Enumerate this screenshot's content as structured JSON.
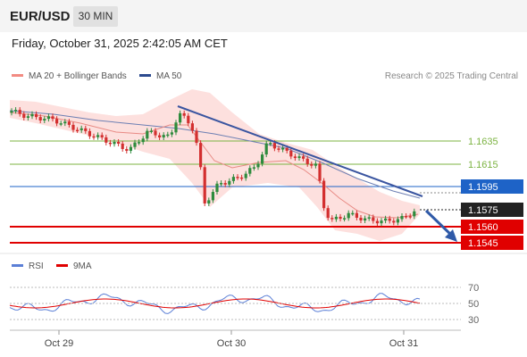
{
  "header": {
    "symbol": "EUR/USD",
    "timeframe": "30 MIN"
  },
  "datetime": "Friday, October 31, 2025 2:42:05 AM CET",
  "legend": {
    "ma20_label": "MA 20 + Bollinger Bands",
    "ma20_color": "#f28b82",
    "ma50_label": "MA 50",
    "ma50_color": "#2c4a8f",
    "rsi_label": "RSI",
    "rsi_color": "#5b7fd6",
    "ma9_label": "9MA",
    "ma9_color": "#e00000"
  },
  "credit": "Research © 2025 Trading Central",
  "price_levels": [
    {
      "label": "1.1635",
      "kind": "resistance",
      "color": "#7cb342"
    },
    {
      "label": "1.1615",
      "kind": "resistance",
      "color": "#7cb342"
    },
    {
      "label": "1.1595",
      "kind": "pivot",
      "color": "#1e63c7"
    },
    {
      "label": "1.1575",
      "kind": "last",
      "color": "#222222"
    },
    {
      "label": "1.1560",
      "kind": "support",
      "color": "#e00000"
    },
    {
      "label": "1.1545",
      "kind": "support",
      "color": "#e00000"
    }
  ],
  "rsi_axis": [
    "70",
    "50",
    "30"
  ],
  "x_axis": [
    "Oct 29",
    "Oct 30",
    "Oct 31"
  ],
  "colors": {
    "up_candle": "#2e8b3d",
    "down_candle": "#d32f2f",
    "band_fill": "#fde0de",
    "trend_line": "#3a55a0",
    "arrow": "#2f5aa8"
  }
}
